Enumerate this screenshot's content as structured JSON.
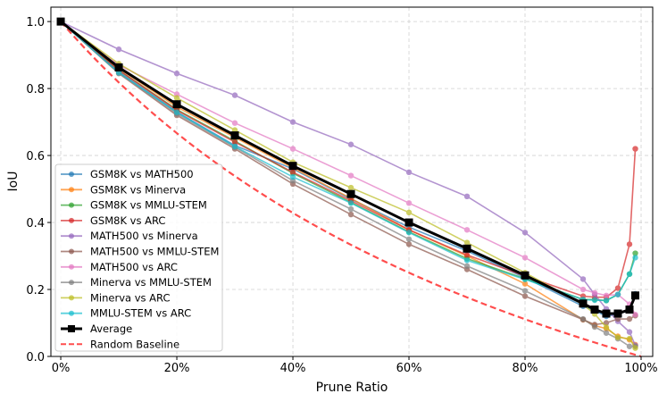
{
  "chart_data": {
    "type": "line",
    "title": "",
    "xlabel": "Prune Ratio",
    "ylabel": "IoU",
    "xlim": [
      -1.7,
      102
    ],
    "ylim": [
      0,
      1.043
    ],
    "x_ticks": [
      "0%",
      "20%",
      "40%",
      "60%",
      "80%",
      "100%"
    ],
    "x_tick_values": [
      0,
      20,
      40,
      60,
      80,
      100
    ],
    "y_ticks": [
      "0.0",
      "0.2",
      "0.4",
      "0.6",
      "0.8",
      "1.0"
    ],
    "y_tick_values": [
      0,
      0.2,
      0.4,
      0.6,
      0.8,
      1.0
    ],
    "grid": true,
    "legend_position": "lower-left",
    "x": [
      0,
      10,
      20,
      30,
      40,
      50,
      60,
      70,
      80,
      90,
      92,
      94,
      96,
      98,
      99
    ],
    "series": [
      {
        "name": "GSM8K vs MATH500",
        "color": "#1f77b4",
        "values": [
          1.0,
          0.85,
          0.73,
          0.63,
          0.56,
          0.47,
          0.386,
          0.315,
          0.235,
          0.15,
          0.137,
          0.12,
          0.127,
          0.137,
          0.187
        ]
      },
      {
        "name": "GSM8K vs Minerva",
        "color": "#ff7f0e",
        "values": [
          1.0,
          0.86,
          0.745,
          0.654,
          0.563,
          0.472,
          0.378,
          0.3,
          0.217,
          0.11,
          0.092,
          0.083,
          0.06,
          0.05,
          0.035
        ]
      },
      {
        "name": "GSM8K vs MMLU-STEM",
        "color": "#2ca02c",
        "values": [
          1.0,
          0.855,
          0.737,
          0.643,
          0.547,
          0.46,
          0.372,
          0.292,
          0.232,
          0.17,
          0.17,
          0.167,
          0.185,
          0.246,
          0.308
        ]
      },
      {
        "name": "GSM8K vs ARC",
        "color": "#d62728",
        "values": [
          1.0,
          0.855,
          0.735,
          0.64,
          0.55,
          0.465,
          0.378,
          0.303,
          0.24,
          0.18,
          0.177,
          0.177,
          0.204,
          0.335,
          0.62
        ]
      },
      {
        "name": "MATH500 vs Minerva",
        "color": "#9467bd",
        "values": [
          1.0,
          0.917,
          0.845,
          0.78,
          0.7,
          0.633,
          0.55,
          0.478,
          0.37,
          0.231,
          0.185,
          0.142,
          0.105,
          0.073,
          0.033
        ]
      },
      {
        "name": "MATH500 vs MMLU-STEM",
        "color": "#8c564b",
        "values": [
          1.0,
          0.845,
          0.72,
          0.62,
          0.515,
          0.424,
          0.335,
          0.26,
          0.18,
          0.11,
          0.095,
          0.1,
          0.112,
          0.112,
          0.122
        ]
      },
      {
        "name": "MATH500 vs ARC",
        "color": "#e377c2",
        "values": [
          1.0,
          0.87,
          0.783,
          0.697,
          0.62,
          0.54,
          0.458,
          0.378,
          0.295,
          0.2,
          0.19,
          0.182,
          0.185,
          0.156,
          0.125
        ]
      },
      {
        "name": "Minerva vs MMLU-STEM",
        "color": "#7f7f7f",
        "values": [
          1.0,
          0.848,
          0.725,
          0.625,
          0.525,
          0.44,
          0.35,
          0.27,
          0.196,
          0.112,
          0.088,
          0.07,
          0.053,
          0.03,
          0.03
        ]
      },
      {
        "name": "Minerva vs ARC",
        "color": "#bcbd22",
        "values": [
          1.0,
          0.874,
          0.772,
          0.676,
          0.58,
          0.504,
          0.43,
          0.34,
          0.25,
          0.155,
          0.127,
          0.087,
          0.057,
          0.053,
          0.025
        ]
      },
      {
        "name": "MMLU-STEM vs ARC",
        "color": "#17becf",
        "values": [
          1.0,
          0.847,
          0.729,
          0.627,
          0.536,
          0.458,
          0.37,
          0.287,
          0.23,
          0.17,
          0.168,
          0.167,
          0.185,
          0.246,
          0.295
        ]
      },
      {
        "name": "Average",
        "color": "#000000",
        "values": [
          1.0,
          0.863,
          0.753,
          0.66,
          0.569,
          0.485,
          0.4,
          0.322,
          0.242,
          0.158,
          0.14,
          0.128,
          0.128,
          0.14,
          0.182
        ]
      }
    ],
    "baseline": {
      "name": "Random Baseline",
      "color": "#ff4d4d",
      "formula": "(1-r)/(1+r)",
      "x": [
        0,
        10,
        20,
        30,
        40,
        50,
        60,
        70,
        80,
        90,
        100
      ],
      "values": [
        1.0,
        0.818,
        0.667,
        0.538,
        0.429,
        0.333,
        0.25,
        0.176,
        0.111,
        0.053,
        0.0
      ]
    }
  }
}
